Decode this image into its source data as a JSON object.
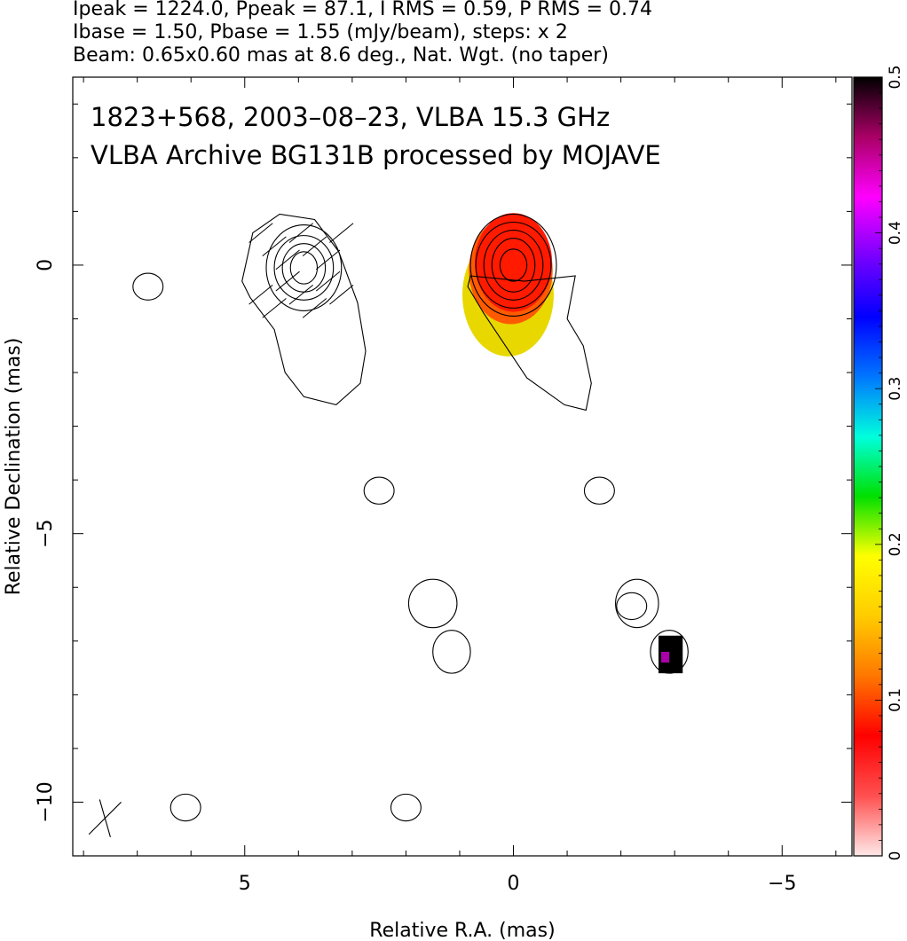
{
  "header": {
    "line1": "Ipeak = 1224.0, Ppeak = 87.1, I RMS = 0.59, P RMS = 0.74",
    "line2": "Ibase = 1.50, Pbase = 1.55 (mJy/beam), steps: x 2",
    "line3": "Beam: 0.65x0.60 mas at 8.6 deg., Nat. Wgt. (no taper)"
  },
  "chart_data": {
    "type": "heatmap",
    "annotation_line1": "1823+568, 2003–08–23, VLBA 15.3 GHz",
    "annotation_line2": "VLBA Archive BG131B processed by MOJAVE",
    "xlabel": "Relative R.A. (mas)",
    "ylabel": "Relative Declination (mas)",
    "xlim": [
      8.2,
      -6.3
    ],
    "ylim": [
      -11.0,
      3.5
    ],
    "x_ticks": [
      5,
      0,
      -5
    ],
    "x_tick_labels": [
      "5",
      "0",
      "−5"
    ],
    "y_ticks": [
      0,
      -5,
      -10
    ],
    "y_tick_labels": [
      "0",
      "−5",
      "−10"
    ],
    "colorbar": {
      "range": [
        0,
        0.5
      ],
      "ticks": [
        0,
        0.1,
        0.2,
        0.3,
        0.4,
        0.5
      ],
      "tick_labels": [
        "0",
        "0.1",
        "0.2",
        "0.3",
        "0.4",
        "0.5"
      ],
      "colors": [
        "#ffe8e8",
        "#ff5050",
        "#ff0000",
        "#ff7700",
        "#ffcc00",
        "#ffff00",
        "#00e000",
        "#00ffdd",
        "#0077ff",
        "#0000ff",
        "#7700ff",
        "#ff00ff",
        "#aa0066",
        "#000000"
      ]
    },
    "beam": {
      "major_mas": 0.65,
      "minor_mas": 0.6,
      "pa_deg": 8.6,
      "center": [
        7.6,
        -10.3
      ]
    },
    "contours": [
      {
        "name": "core",
        "center": [
          0.0,
          0.0
        ],
        "radii": [
          [
            0.25,
            0.3
          ],
          [
            0.4,
            0.5
          ],
          [
            0.55,
            0.65
          ],
          [
            0.7,
            0.8
          ],
          [
            0.8,
            0.95
          ]
        ],
        "tail": [
          [
            0.8,
            -0.2
          ],
          [
            -0.2,
            -0.3
          ],
          [
            -1.15,
            -0.2
          ],
          [
            -1.0,
            -1.0
          ],
          [
            -1.3,
            -1.5
          ],
          [
            -1.45,
            -2.2
          ],
          [
            -1.35,
            -2.7
          ],
          [
            -0.95,
            -2.6
          ],
          [
            -0.25,
            -2.1
          ],
          [
            0.55,
            -0.9
          ],
          [
            0.85,
            -0.4
          ]
        ]
      },
      {
        "name": "west-knot",
        "center": [
          3.9,
          -0.05
        ],
        "radii": [
          [
            0.25,
            0.3
          ],
          [
            0.4,
            0.45
          ],
          [
            0.55,
            0.6
          ],
          [
            0.7,
            0.8
          ]
        ],
        "tail": [
          [
            5.05,
            -0.3
          ],
          [
            4.85,
            0.6
          ],
          [
            4.35,
            0.95
          ],
          [
            3.7,
            0.85
          ],
          [
            3.25,
            0.25
          ],
          [
            2.9,
            -0.7
          ],
          [
            2.75,
            -1.6
          ],
          [
            2.85,
            -2.2
          ],
          [
            3.3,
            -2.6
          ],
          [
            3.9,
            -2.45
          ],
          [
            4.25,
            -2.0
          ],
          [
            4.45,
            -1.2
          ],
          [
            4.9,
            -0.6
          ]
        ]
      }
    ],
    "small_contours": [
      [
        6.8,
        -0.4
      ],
      [
        2.5,
        -4.2
      ],
      [
        -1.6,
        -4.2
      ],
      [
        6.1,
        -10.1
      ],
      [
        2.0,
        -10.1
      ],
      [
        -2.2,
        -6.35
      ]
    ],
    "pol_core_fraction": 0.1,
    "pol_knot_fraction": 0.5
  }
}
